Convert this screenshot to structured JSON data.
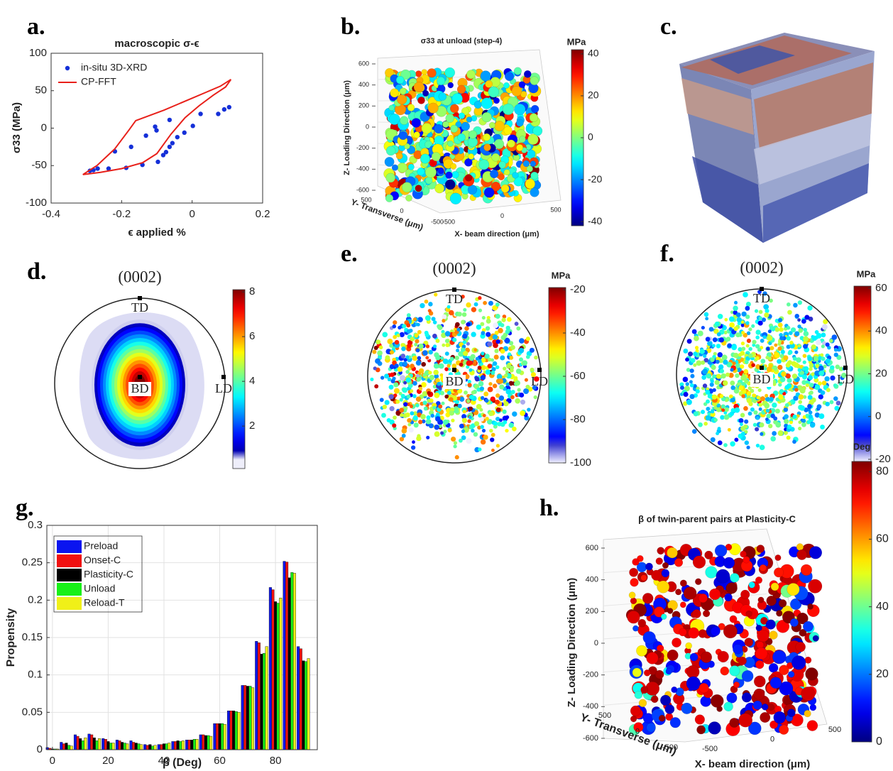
{
  "chart_data": [
    {
      "type": "line",
      "panel_label": "a.",
      "title": "macroscopic σ-ϵ",
      "x_label": "ϵ applied %",
      "y_label": "σ33 (MPa)",
      "xlim": [
        -0.4,
        0.2
      ],
      "xticks": [
        -0.4,
        -0.2,
        0,
        0.2
      ],
      "ylim": [
        -100,
        100
      ],
      "yticks": [
        -100,
        -50,
        0,
        50,
        100
      ],
      "legend": "upper left",
      "series": [
        {
          "name": "in-situ 3D-XRD",
          "color": "#1530d8",
          "style": "markers",
          "x": [
            -0.29,
            -0.28,
            -0.268,
            -0.237,
            -0.187,
            -0.141,
            -0.097,
            -0.082,
            -0.074,
            -0.064,
            -0.056,
            -0.042,
            -0.022,
            0.002,
            0.024,
            0.074,
            0.091,
            0.105,
            -0.219,
            -0.173,
            -0.131,
            -0.105,
            -0.101,
            -0.064
          ],
          "values": [
            -57,
            -56,
            -54,
            -54,
            -53,
            -49,
            -45,
            -36,
            -32,
            -25,
            -20,
            -12,
            -6,
            3,
            19,
            19,
            25,
            28,
            -31,
            -25,
            -10,
            2,
            -3,
            11
          ]
        },
        {
          "name": "CP-FFT",
          "color": "#e8201a",
          "style": "line",
          "x": [
            -0.31,
            -0.27,
            -0.22,
            -0.18,
            -0.16,
            -0.12,
            -0.08,
            -0.04,
            0,
            0.04,
            0.08,
            0.11,
            0.095,
            0.06,
            0.02,
            -0.02,
            -0.06,
            -0.1,
            -0.14,
            -0.2,
            -0.26,
            -0.31
          ],
          "values": [
            -62,
            -50,
            -28,
            -3,
            10,
            17,
            24,
            32,
            40,
            48,
            56,
            65,
            55,
            44,
            30,
            14,
            -8,
            -34,
            -46,
            -54,
            -59,
            -62
          ]
        }
      ]
    },
    {
      "type": "scatter3d",
      "panel_label": "b.",
      "title": "σ33 at unload (step-4)",
      "x_label": "X- beam direction (μm)",
      "y_label": "Y- Transverse (μm)",
      "z_label": "Z- Loading Direction (μm)",
      "xticks": [
        -500,
        0,
        500
      ],
      "yticks": [
        500,
        0,
        -500
      ],
      "zticks": [
        600,
        400,
        200,
        0,
        -200,
        -400,
        -600
      ],
      "colorbar_label": "MPa",
      "clim": [
        -42,
        42
      ],
      "cticks": [
        40,
        20,
        0,
        -20,
        -40
      ]
    },
    {
      "type": "render",
      "panel_label": "c."
    },
    {
      "type": "pole_figure",
      "panel_label": "d.",
      "title": "(0002)",
      "style": "contour",
      "annotations": {
        "top": "TD",
        "center": "BD",
        "right": "LD"
      },
      "clim": [
        0.1,
        8.1
      ],
      "cticks": [
        8,
        6,
        4,
        2
      ]
    },
    {
      "type": "pole_figure",
      "panel_label": "e.",
      "title": "(0002)",
      "style": "scatter",
      "annotations": {
        "top": "TD",
        "center": "BD",
        "right": "LD"
      },
      "colorbar_label": "MPa",
      "clim": [
        -100,
        -19
      ],
      "cticks": [
        -20,
        -40,
        -60,
        -80,
        -100
      ]
    },
    {
      "type": "pole_figure",
      "panel_label": "f.",
      "title": "(0002)",
      "style": "scatter",
      "annotations": {
        "top": "TD",
        "center": "BD",
        "right": "LD"
      },
      "colorbar_label": "MPa",
      "clim": [
        -21,
        61
      ],
      "cticks": [
        60,
        40,
        20,
        0,
        -20
      ]
    },
    {
      "type": "bar",
      "panel_label": "g.",
      "x_label": "β (Deg)",
      "y_label": "Propensity",
      "x": [
        0,
        5,
        10,
        15,
        20,
        25,
        30,
        35,
        40,
        45,
        50,
        55,
        60,
        65,
        70,
        75,
        80,
        85,
        90
      ],
      "xlim": [
        -2,
        95
      ],
      "xticks": [
        0,
        20,
        40,
        60,
        80
      ],
      "ylim": [
        0,
        0.3
      ],
      "yticks": [
        0,
        0.05,
        0.1,
        0.15,
        0.2,
        0.25,
        0.3
      ],
      "grid": true,
      "legend": "upper left",
      "series": [
        {
          "name": "Preload",
          "color": "#0a14f0",
          "values": [
            0.003,
            0.01,
            0.02,
            0.021,
            0.015,
            0.013,
            0.012,
            0.007,
            0.007,
            0.011,
            0.013,
            0.02,
            0.035,
            0.052,
            0.086,
            0.145,
            0.217,
            0.252,
            0.138
          ]
        },
        {
          "name": "Onset-C",
          "color": "#f01010",
          "values": [
            0.002,
            0.008,
            0.018,
            0.02,
            0.014,
            0.012,
            0.01,
            0.006,
            0.007,
            0.011,
            0.013,
            0.02,
            0.035,
            0.052,
            0.086,
            0.143,
            0.214,
            0.251,
            0.135
          ]
        },
        {
          "name": "Plasticity-C",
          "color": "#000000",
          "values": [
            0.001,
            0.009,
            0.015,
            0.016,
            0.011,
            0.01,
            0.009,
            0.007,
            0.008,
            0.012,
            0.013,
            0.019,
            0.035,
            0.052,
            0.085,
            0.128,
            0.198,
            0.23,
            0.119
          ]
        },
        {
          "name": "Unload",
          "color": "#18f018",
          "values": [
            0.001,
            0.006,
            0.012,
            0.012,
            0.009,
            0.009,
            0.008,
            0.005,
            0.008,
            0.011,
            0.014,
            0.019,
            0.035,
            0.051,
            0.085,
            0.129,
            0.196,
            0.237,
            0.118
          ]
        },
        {
          "name": "Reload-T",
          "color": "#f0f018",
          "values": [
            0.001,
            0.005,
            0.016,
            0.015,
            0.009,
            0.008,
            0.007,
            0.006,
            0.009,
            0.012,
            0.014,
            0.018,
            0.034,
            0.05,
            0.083,
            0.138,
            0.203,
            0.236,
            0.122
          ]
        }
      ]
    },
    {
      "type": "scatter3d",
      "panel_label": "h.",
      "title": "β of twin-parent pairs at Plasticity-C",
      "x_label": "X- beam direction (μm)",
      "y_label": "Y- Transverse (μm)",
      "z_label": "Z- Loading Direction (μm)",
      "xticks": [
        -500,
        0,
        500
      ],
      "yticks": [
        500,
        0,
        -500
      ],
      "zticks": [
        600,
        400,
        200,
        0,
        -200,
        -400,
        -600
      ],
      "colorbar_label": "Deg",
      "clim": [
        0,
        83
      ],
      "cticks": [
        80,
        60,
        40,
        20,
        0
      ]
    }
  ]
}
